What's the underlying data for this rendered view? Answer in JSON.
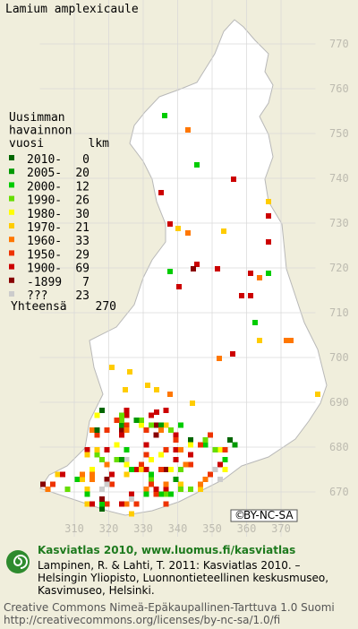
{
  "title": "Lamium amplexicaule",
  "legend": {
    "heading": [
      "Uusimman",
      "havainnon",
      "vuosi"
    ],
    "count_heading": "lkm",
    "rows": [
      {
        "label": "2010-",
        "count": 0,
        "color": "#006600"
      },
      {
        "label": "2005-",
        "count": 20,
        "color": "#009900"
      },
      {
        "label": "2000-",
        "count": 12,
        "color": "#00cc00"
      },
      {
        "label": "1990-",
        "count": 26,
        "color": "#66dd00"
      },
      {
        "label": "1980-",
        "count": 30,
        "color": "#ffff00"
      },
      {
        "label": "1970-",
        "count": 21,
        "color": "#ffcc00"
      },
      {
        "label": "1960-",
        "count": 33,
        "color": "#ff7700"
      },
      {
        "label": "1950-",
        "count": 29,
        "color": "#ee3300"
      },
      {
        "label": "1900-",
        "count": 69,
        "color": "#cc0000"
      },
      {
        "label": "-1899",
        "count": 7,
        "color": "#880000"
      },
      {
        "label": "???",
        "count": 23,
        "color": "#cccccc"
      }
    ],
    "total_label": "Yhteensä",
    "total": 270
  },
  "map": {
    "xticks": [
      310,
      320,
      330,
      340,
      350,
      360,
      370
    ],
    "yticks": [
      670,
      680,
      690,
      700,
      710,
      720,
      730,
      740,
      750,
      760,
      770
    ],
    "xlim": [
      300,
      380
    ],
    "ylim": [
      660,
      780
    ]
  },
  "badge": "BY-NC-SA",
  "footer": {
    "heading": "Kasviatlas 2010, www.luomus.fi/kasviatlas",
    "citation": [
      "Lampinen, R. & Lahti, T. 2011: Kasviatlas 2010. –",
      "Helsingin Yliopisto, Luonnontieteellinen keskusmuseo,",
      "Kasvimuseo, Helsinki."
    ],
    "license": [
      "Creative Commons Nimeä-Epäkaupallinen-Tarttuva 1.0 Suomi",
      "http://creativecommons.org/licenses/by-nc-sa/1.0/fi"
    ]
  }
}
